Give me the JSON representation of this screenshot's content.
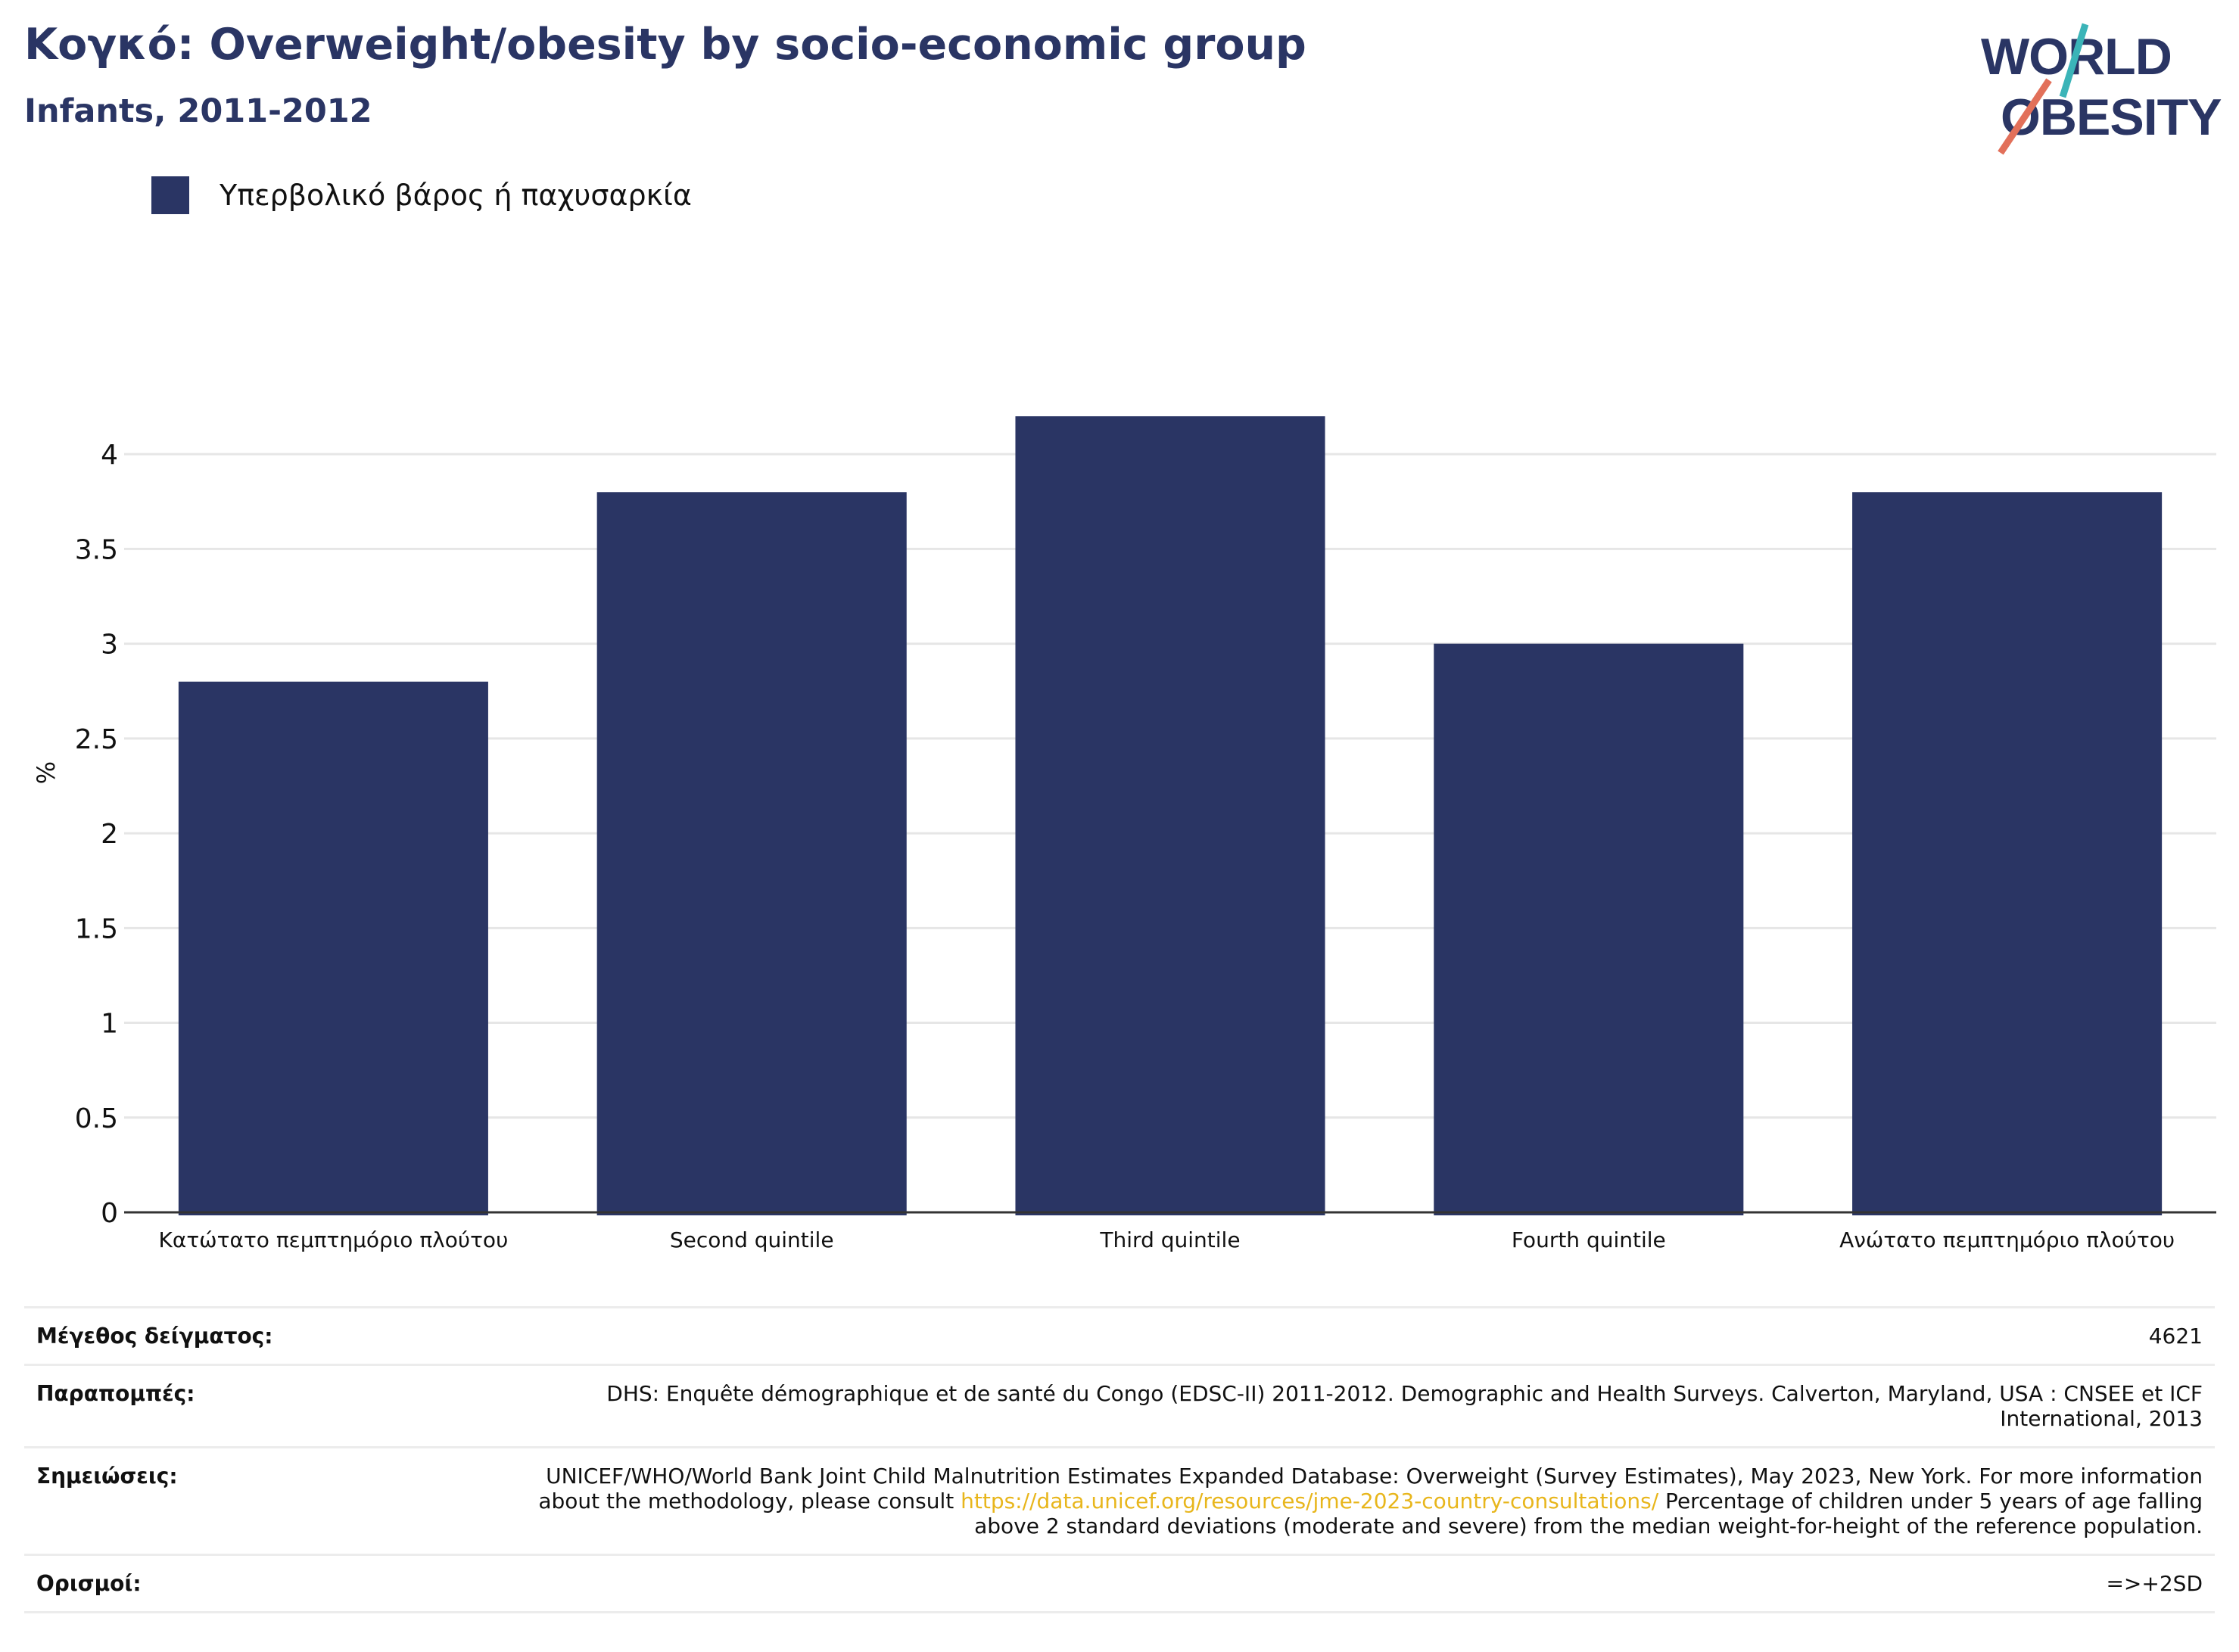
{
  "header": {
    "title": "Κογκό: Overweight/obesity by socio-economic group",
    "subtitle": "Infants, 2011-2012"
  },
  "logo": {
    "line1": "WORLD",
    "line2": "OBESITY",
    "text_color": "#2a3564",
    "accent_teal": "#3bb4b8",
    "accent_coral": "#e2705a"
  },
  "legend": {
    "label": "Υπερβολικό βάρος ή παχυσαρκία",
    "color": "#2a3564"
  },
  "chart_data": {
    "type": "bar",
    "categories": [
      "Κατώτατο πεμπτημόριο πλούτου",
      "Second quintile",
      "Third quintile",
      "Fourth quintile",
      "Ανώτατο πεμπτημόριο πλούτου"
    ],
    "series": [
      {
        "name": "Υπερβολικό βάρος ή παχυσαρκία",
        "values": [
          2.8,
          3.8,
          4.2,
          3.0,
          3.8
        ],
        "color": "#2a3564"
      }
    ],
    "ylabel": "%",
    "ylim": [
      0,
      4.4
    ],
    "yticks": [
      0,
      0.5,
      1,
      1.5,
      2,
      2.5,
      3,
      3.5,
      4
    ],
    "ytick_labels": [
      "0",
      "0.5",
      "1",
      "1.5",
      "2",
      "2.5",
      "3",
      "3.5",
      "4"
    ],
    "grid": true,
    "legend_position": "top-left"
  },
  "meta": {
    "sample_size": {
      "label": "Μέγεθος δείγματος:",
      "value": "4621"
    },
    "references": {
      "label": "Παραπομπές:",
      "value": "DHS: Enquête démographique et de santé du Congo (EDSC-II) 2011-2012. Demographic and Health Surveys. Calverton, Maryland, USA : CNSEE et ICF International, 2013"
    },
    "notes": {
      "label": "Σημειώσεις:",
      "before": "UNICEF/WHO/World Bank Joint Child Malnutrition Estimates Expanded Database: Overweight (Survey Estimates), May 2023, New York. For more information about the methodology, please consult ",
      "link": "https://data.unicef.org/resources/jme-2023-country-consultations/",
      "after": " Percentage of children under 5 years of age falling above 2 standard deviations (moderate and severe) from the median weight-for-height of the reference population."
    },
    "definitions": {
      "label": "Ορισμοί:",
      "value": "=>+2SD"
    }
  }
}
